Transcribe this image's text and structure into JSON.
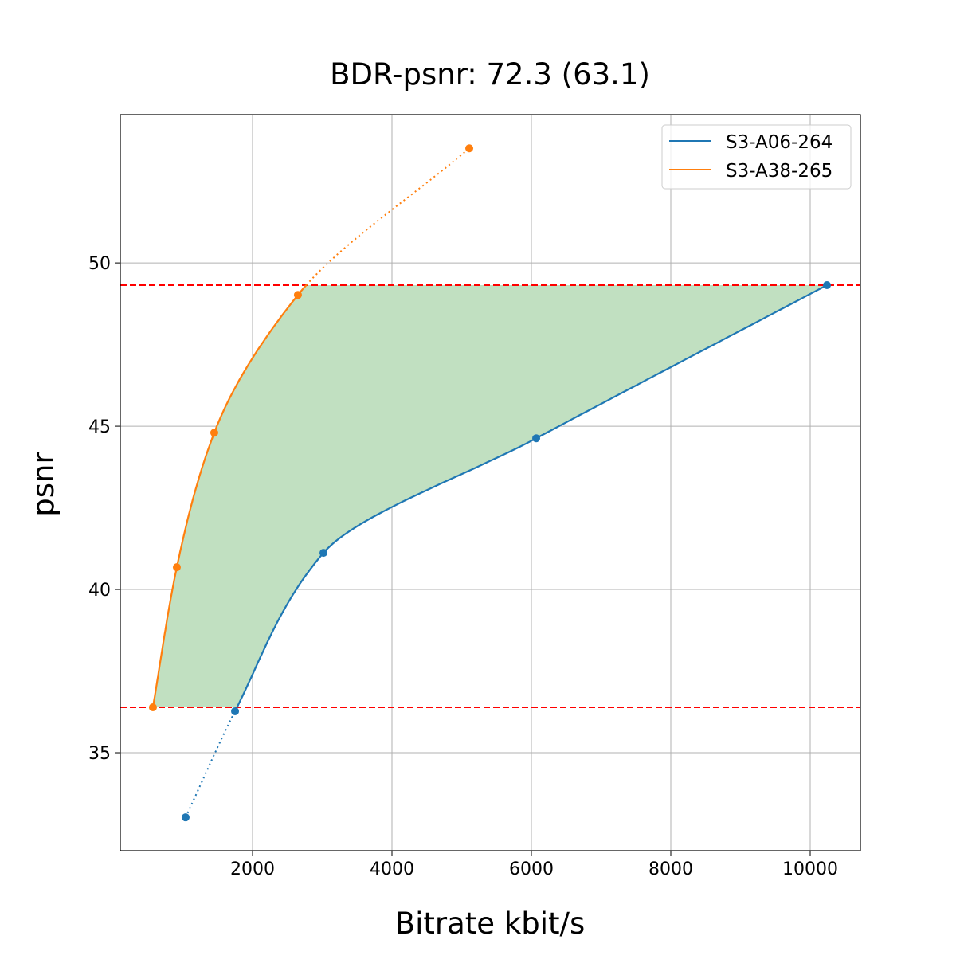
{
  "chart_data": {
    "type": "line",
    "title": "BDR-psnr: 72.3 (63.1)",
    "xlabel": "Bitrate kbit/s",
    "ylabel": "psnr",
    "xlim": [
      103,
      10720
    ],
    "ylim": [
      32.0,
      54.54
    ],
    "xticks": [
      2000,
      4000,
      6000,
      8000,
      10000
    ],
    "yticks": [
      35,
      40,
      45,
      50
    ],
    "grid": true,
    "legend_position": "top-right",
    "series": [
      {
        "name": "S3-A06-264",
        "color": "#1f77b4",
        "x": [
          1040,
          1749,
          3017,
          6069,
          10240
        ],
        "y": [
          33.02,
          36.27,
          41.12,
          44.63,
          49.32
        ]
      },
      {
        "name": "S3-A38-265",
        "color": "#ff7f0e",
        "x": [
          571,
          914,
          1451,
          2651,
          5109
        ],
        "y": [
          36.39,
          40.68,
          44.8,
          49.02,
          53.51
        ]
      }
    ],
    "reference_lines": {
      "color": "#ff0000",
      "style": "dashed",
      "y": [
        36.39,
        49.32
      ]
    },
    "fill_color": "#c1e0c1"
  }
}
